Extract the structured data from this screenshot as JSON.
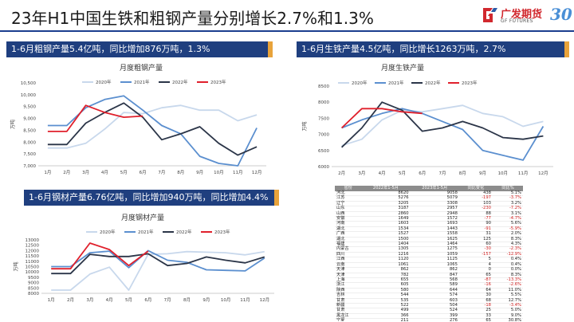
{
  "title": "23年H1中国生铁和粗钢产量分别增长2.7%和1.3%",
  "logo": {
    "cn": "广发期货",
    "en": "GF FUTURES",
    "anniv": "30"
  },
  "banners": {
    "crude": "1-6月粗钢产量5.4亿吨，同比增加876万吨，1.3%",
    "iron": "1-6月生铁产量4.5亿吨，同比增长1263万吨，2.7%",
    "steel": "1-6月钢材产量6.76亿吨，同比增加940万吨，同比增加4.4%"
  },
  "colors": {
    "y2020": "#c8d8ec",
    "y2021": "#5b8fcf",
    "y2022": "#2b3548",
    "y2023": "#e0202c",
    "banner": "#1f3f7f"
  },
  "chart_data": [
    {
      "type": "line",
      "title": "月度粗钢产量",
      "ylabel": "万吨",
      "ylim": [
        7000,
        10500
      ],
      "yticks": [
        7000,
        7500,
        8000,
        8500,
        9000,
        9500,
        10000,
        10500
      ],
      "tick_labels": [
        "7,000",
        "7,500",
        "8,000",
        "8,500",
        "9,000",
        "9,500",
        "10,000",
        "10,500"
      ],
      "categories": [
        "1月",
        "2月",
        "3月",
        "4月",
        "5月",
        "6月",
        "7月",
        "8月",
        "9月",
        "10月",
        "11月",
        "12月"
      ],
      "series": [
        {
          "name": "2020年",
          "values": [
            7750,
            7750,
            7950,
            8550,
            9250,
            9200,
            9450,
            9550,
            9350,
            9350,
            8900,
            9150
          ]
        },
        {
          "name": "2021年",
          "values": [
            8700,
            8700,
            9450,
            9800,
            9950,
            9350,
            8700,
            8350,
            7400,
            7100,
            7000,
            8600
          ]
        },
        {
          "name": "2022年",
          "values": [
            7900,
            7900,
            8800,
            9250,
            9650,
            9050,
            8100,
            8350,
            8650,
            7950,
            7450,
            7800
          ]
        },
        {
          "name": "2023年",
          "values": [
            8450,
            8450,
            9550,
            9250,
            9050,
            9100,
            null,
            null,
            null,
            null,
            null,
            null
          ]
        }
      ]
    },
    {
      "type": "line",
      "title": "月度生铁产量",
      "ylabel": "万吨",
      "ylim": [
        6000,
        8500
      ],
      "yticks": [
        6000,
        6500,
        7000,
        7500,
        8000,
        8500
      ],
      "tick_labels": [
        "6000",
        "6500",
        "7000",
        "7500",
        "8000",
        "8500"
      ],
      "categories": [
        "2月",
        "3月",
        "4月",
        "5月",
        "6月",
        "7月",
        "8月",
        "9月",
        "10月",
        "11月",
        "12月"
      ],
      "series": [
        {
          "name": "2020年",
          "values": [
            6650,
            6850,
            7450,
            7750,
            7700,
            7800,
            7900,
            7650,
            7550,
            7250,
            7400
          ]
        },
        {
          "name": "2021年",
          "values": [
            7200,
            7450,
            7650,
            7800,
            7650,
            7400,
            7150,
            6500,
            6350,
            6200,
            7250
          ]
        },
        {
          "name": "2022年",
          "values": [
            6600,
            7200,
            8000,
            7750,
            7100,
            7200,
            7400,
            7200,
            6900,
            6850,
            6950
          ]
        },
        {
          "name": "2023年",
          "values": [
            7200,
            7800,
            7800,
            7700,
            7650,
            null,
            null,
            null,
            null,
            null,
            null
          ]
        }
      ]
    },
    {
      "type": "line",
      "title": "月度钢材产量",
      "ylabel": "万吨",
      "ylim": [
        8000,
        13000
      ],
      "yticks": [
        8000,
        8500,
        9000,
        9500,
        10000,
        10500,
        11000,
        11500,
        12000,
        12500,
        13000
      ],
      "tick_labels": [
        "8000",
        "8500",
        "9000",
        "9500",
        "10000",
        "10500",
        "11000",
        "11500",
        "12000",
        "12500",
        "13000"
      ],
      "categories": [
        "1月",
        "2月",
        "3月",
        "4月",
        "5月",
        "6月",
        "7月",
        "8月",
        "9月",
        "10月",
        "11月",
        "12月"
      ],
      "series": [
        {
          "name": "2020年",
          "values": [
            8300,
            8300,
            9800,
            10450,
            8300,
            11650,
            11700,
            11900,
            11850,
            11800,
            11600,
            11900
          ]
        },
        {
          "name": "2021年",
          "values": [
            10500,
            10500,
            11800,
            11950,
            10400,
            12000,
            11100,
            10900,
            10200,
            10150,
            10100,
            11300
          ]
        },
        {
          "name": "2022年",
          "values": [
            9850,
            9850,
            11650,
            11450,
            11450,
            11700,
            10600,
            10800,
            11400,
            11100,
            10850,
            11400
          ]
        },
        {
          "name": "2023年",
          "values": [
            10300,
            10300,
            12700,
            12100,
            10600,
            11950,
            null,
            null,
            null,
            null,
            null,
            null
          ]
        }
      ]
    },
    {
      "type": "table",
      "columns": [
        "省份",
        "2022年1-5月",
        "2023年1-5月",
        "同比变化",
        "同比%"
      ],
      "rows": [
        [
          "河北",
          "8620",
          "9058",
          "438",
          "5.1%"
        ],
        [
          "江苏",
          "5276",
          "5079",
          "-197",
          "-3.7%"
        ],
        [
          "辽宁",
          "3205",
          "3308",
          "103",
          "3.2%"
        ],
        [
          "山东",
          "3187",
          "2957",
          "-230",
          "-7.2%"
        ],
        [
          "山西",
          "2860",
          "2948",
          "88",
          "3.1%"
        ],
        [
          "安徽",
          "1649",
          "1572",
          "-77",
          "-4.7%"
        ],
        [
          "河南",
          "1603",
          "1693",
          "90",
          "5.6%"
        ],
        [
          "湖北",
          "1534",
          "1443",
          "-91",
          "-5.9%"
        ],
        [
          "广西",
          "1527",
          "1558",
          "31",
          "2.0%"
        ],
        [
          "湖北",
          "1500",
          "1625",
          "125",
          "8.3%"
        ],
        [
          "福建",
          "1404",
          "1464",
          "60",
          "4.3%"
        ],
        [
          "内蒙古",
          "1305",
          "1275",
          "-30",
          "-2.3%"
        ],
        [
          "四川",
          "1216",
          "1059",
          "-157",
          "-12.9%"
        ],
        [
          "江西",
          "1120",
          "1125",
          "5",
          "0.4%"
        ],
        [
          "云南",
          "1061",
          "1065",
          "4",
          "0.4%"
        ],
        [
          "天津",
          "862",
          "862",
          "0",
          "0.0%"
        ],
        [
          "天津",
          "782",
          "847",
          "65",
          "8.3%"
        ],
        [
          "上海",
          "655",
          "568",
          "-87",
          "-13.3%"
        ],
        [
          "浙江",
          "605",
          "589",
          "-16",
          "-2.6%"
        ],
        [
          "陕西",
          "580",
          "644",
          "64",
          "11.0%"
        ],
        [
          "吉林",
          "544",
          "574",
          "30",
          "5.5%"
        ],
        [
          "甘肃",
          "535",
          "603",
          "68",
          "12.7%"
        ],
        [
          "新疆",
          "522",
          "504",
          "-18",
          "-3.4%"
        ],
        [
          "甘肃",
          "499",
          "524",
          "25",
          "5.0%"
        ],
        [
          "黑龙江",
          "366",
          "399",
          "33",
          "9.0%"
        ],
        [
          "宁夏",
          "211",
          "276",
          "65",
          "30.8%"
        ],
        [
          "青海",
          "146",
          "194",
          "48",
          "32.9%"
        ]
      ]
    }
  ]
}
